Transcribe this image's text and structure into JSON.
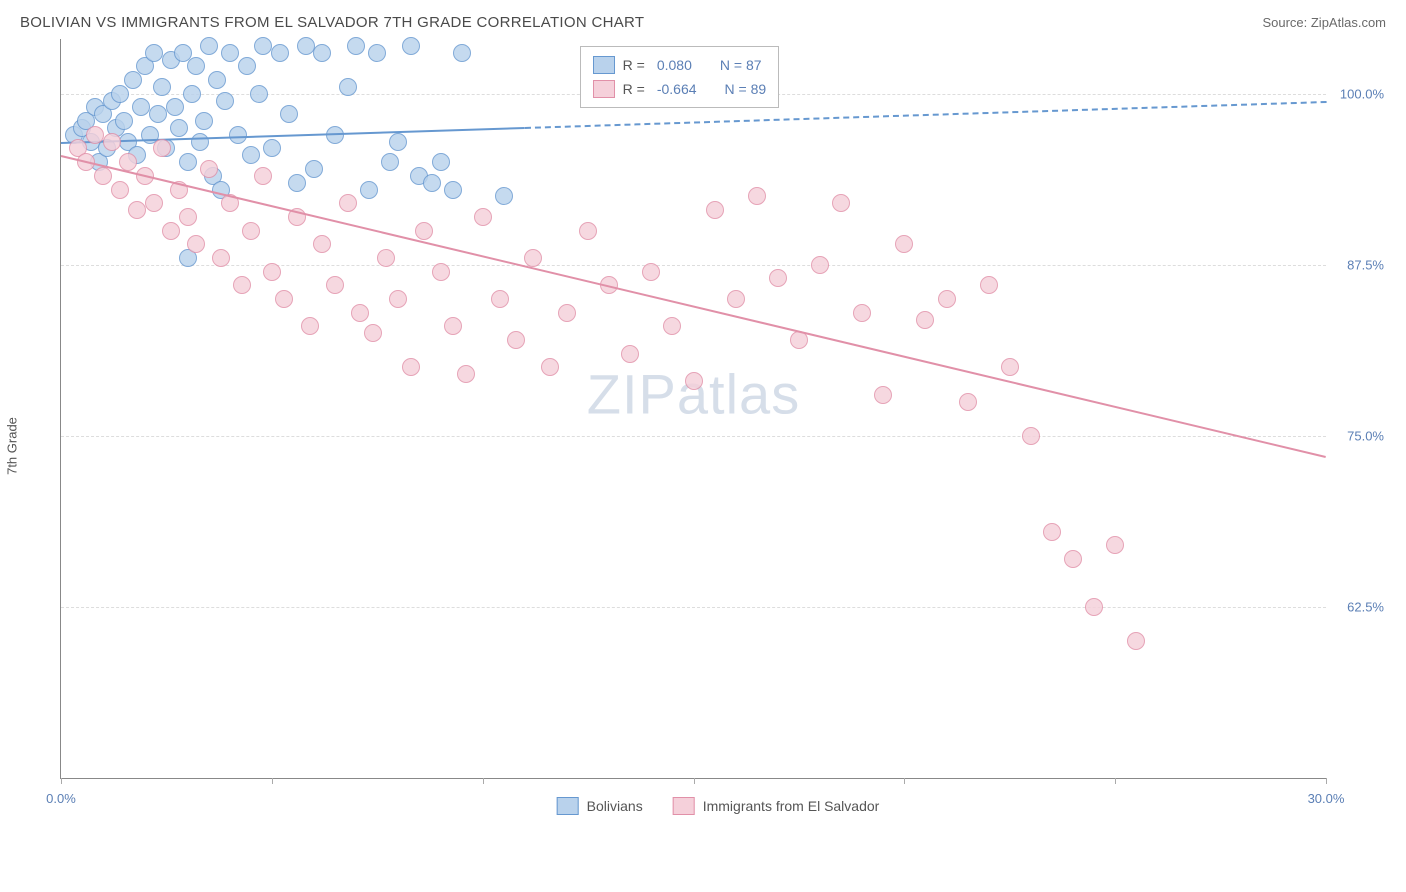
{
  "title": "BOLIVIAN VS IMMIGRANTS FROM EL SALVADOR 7TH GRADE CORRELATION CHART",
  "source": "Source: ZipAtlas.com",
  "ylabel": "7th Grade",
  "watermark_a": "ZIP",
  "watermark_b": "atlas",
  "chart": {
    "type": "scatter",
    "xlim": [
      0,
      30
    ],
    "ylim": [
      50,
      104
    ],
    "xtick_positions": [
      0,
      5,
      10,
      15,
      20,
      25,
      30
    ],
    "xtick_labels": {
      "0": "0.0%",
      "30": "30.0%"
    },
    "ytick_positions": [
      62.5,
      75,
      87.5,
      100
    ],
    "ytick_labels": {
      "62.5": "62.5%",
      "75": "75.0%",
      "87.5": "87.5%",
      "100": "100.0%"
    },
    "grid_color": "#dddddd",
    "background_color": "#ffffff",
    "axis_color": "#888888",
    "tick_label_color": "#5b7fb5",
    "marker_radius": 9,
    "marker_border": 1.5,
    "series": [
      {
        "name": "Bolivians",
        "fill": "#b9d2ec",
        "stroke": "#6698d0",
        "r_value": "0.080",
        "n_value": "87",
        "trend": {
          "x1": 0,
          "y1": 96.5,
          "x2": 30,
          "y2": 99.5,
          "dash_after_x": 11
        },
        "points": [
          [
            0.3,
            97
          ],
          [
            0.5,
            97.5
          ],
          [
            0.6,
            98
          ],
          [
            0.7,
            96.5
          ],
          [
            0.8,
            99
          ],
          [
            0.9,
            95
          ],
          [
            1.0,
            98.5
          ],
          [
            1.1,
            96
          ],
          [
            1.2,
            99.5
          ],
          [
            1.3,
            97.5
          ],
          [
            1.4,
            100
          ],
          [
            1.5,
            98
          ],
          [
            1.6,
            96.5
          ],
          [
            1.7,
            101
          ],
          [
            1.8,
            95.5
          ],
          [
            1.9,
            99
          ],
          [
            2.0,
            102
          ],
          [
            2.1,
            97
          ],
          [
            2.2,
            103
          ],
          [
            2.3,
            98.5
          ],
          [
            2.4,
            100.5
          ],
          [
            2.5,
            96
          ],
          [
            2.6,
            102.5
          ],
          [
            2.7,
            99
          ],
          [
            2.8,
            97.5
          ],
          [
            2.9,
            103
          ],
          [
            3.0,
            95
          ],
          [
            3.1,
            100
          ],
          [
            3.2,
            102
          ],
          [
            3.3,
            96.5
          ],
          [
            3.4,
            98
          ],
          [
            3.5,
            103.5
          ],
          [
            3.6,
            94
          ],
          [
            3.7,
            101
          ],
          [
            3.8,
            93
          ],
          [
            3.9,
            99.5
          ],
          [
            4.0,
            103
          ],
          [
            4.2,
            97
          ],
          [
            4.4,
            102
          ],
          [
            4.5,
            95.5
          ],
          [
            4.7,
            100
          ],
          [
            4.8,
            103.5
          ],
          [
            5.0,
            96
          ],
          [
            5.2,
            103
          ],
          [
            5.4,
            98.5
          ],
          [
            5.6,
            93.5
          ],
          [
            5.8,
            103.5
          ],
          [
            6.0,
            94.5
          ],
          [
            6.2,
            103
          ],
          [
            6.5,
            97
          ],
          [
            6.8,
            100.5
          ],
          [
            7.0,
            103.5
          ],
          [
            7.3,
            93
          ],
          [
            7.5,
            103
          ],
          [
            7.8,
            95
          ],
          [
            8.0,
            96.5
          ],
          [
            8.3,
            103.5
          ],
          [
            8.5,
            94
          ],
          [
            8.8,
            93.5
          ],
          [
            9.0,
            95
          ],
          [
            9.3,
            93
          ],
          [
            9.5,
            103
          ],
          [
            3.0,
            88
          ],
          [
            10.5,
            92.5
          ]
        ]
      },
      {
        "name": "Immigrants from El Salvador",
        "fill": "#f5d0da",
        "stroke": "#e190a8",
        "r_value": "-0.664",
        "n_value": "89",
        "trend": {
          "x1": 0,
          "y1": 95.5,
          "x2": 30,
          "y2": 73.5,
          "dash_after_x": null
        },
        "points": [
          [
            0.4,
            96
          ],
          [
            0.6,
            95
          ],
          [
            0.8,
            97
          ],
          [
            1.0,
            94
          ],
          [
            1.2,
            96.5
          ],
          [
            1.4,
            93
          ],
          [
            1.6,
            95
          ],
          [
            1.8,
            91.5
          ],
          [
            2.0,
            94
          ],
          [
            2.2,
            92
          ],
          [
            2.4,
            96
          ],
          [
            2.6,
            90
          ],
          [
            2.8,
            93
          ],
          [
            3.0,
            91
          ],
          [
            3.2,
            89
          ],
          [
            3.5,
            94.5
          ],
          [
            3.8,
            88
          ],
          [
            4.0,
            92
          ],
          [
            4.3,
            86
          ],
          [
            4.5,
            90
          ],
          [
            4.8,
            94
          ],
          [
            5.0,
            87
          ],
          [
            5.3,
            85
          ],
          [
            5.6,
            91
          ],
          [
            5.9,
            83
          ],
          [
            6.2,
            89
          ],
          [
            6.5,
            86
          ],
          [
            6.8,
            92
          ],
          [
            7.1,
            84
          ],
          [
            7.4,
            82.5
          ],
          [
            7.7,
            88
          ],
          [
            8.0,
            85
          ],
          [
            8.3,
            80
          ],
          [
            8.6,
            90
          ],
          [
            9.0,
            87
          ],
          [
            9.3,
            83
          ],
          [
            9.6,
            79.5
          ],
          [
            10.0,
            91
          ],
          [
            10.4,
            85
          ],
          [
            10.8,
            82
          ],
          [
            11.2,
            88
          ],
          [
            11.6,
            80
          ],
          [
            12.0,
            84
          ],
          [
            12.5,
            90
          ],
          [
            13.0,
            86
          ],
          [
            13.5,
            81
          ],
          [
            14.0,
            87
          ],
          [
            14.5,
            83
          ],
          [
            15.0,
            79
          ],
          [
            15.5,
            91.5
          ],
          [
            16.0,
            85
          ],
          [
            16.5,
            92.5
          ],
          [
            17.0,
            86.5
          ],
          [
            17.5,
            82
          ],
          [
            18.0,
            87.5
          ],
          [
            18.5,
            92
          ],
          [
            19.0,
            84
          ],
          [
            19.5,
            78
          ],
          [
            20.0,
            89
          ],
          [
            20.5,
            83.5
          ],
          [
            21.0,
            85
          ],
          [
            21.5,
            77.5
          ],
          [
            22.0,
            86
          ],
          [
            22.5,
            80
          ],
          [
            23.0,
            75
          ],
          [
            23.5,
            68
          ],
          [
            24.0,
            66
          ],
          [
            24.5,
            62.5
          ],
          [
            25.0,
            67
          ],
          [
            25.5,
            60
          ]
        ]
      }
    ]
  },
  "stats_legend": {
    "r_label": "R =",
    "n_label": "N ="
  },
  "bottom_legend": {
    "series1": "Bolivians",
    "series2": "Immigrants from El Salvador"
  }
}
